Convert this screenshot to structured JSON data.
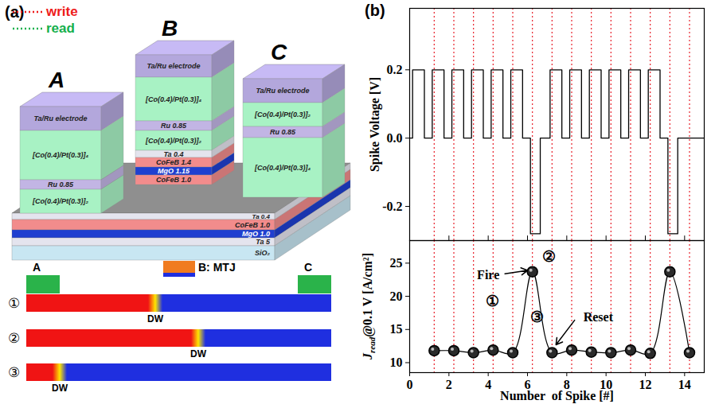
{
  "diagram": {
    "panel_label": "(a)",
    "legend": [
      {
        "label": "write",
        "color": "#ee1b1b"
      },
      {
        "label": "read",
        "color": "#14b04c"
      }
    ],
    "pillars": [
      {
        "name": "A",
        "layers": [
          {
            "text": "Ta/Ru electrode",
            "color": "#b3a7dc"
          },
          {
            "text": "[Co(0.4)/Pt(0.3)]₄",
            "color": "#a8f2c4"
          },
          {
            "text": "Ru 0.85",
            "color": "#c2b5e4"
          },
          {
            "text": "[Co(0.4)/Pt(0.3)]₂",
            "color": "#a8f2c4"
          }
        ]
      },
      {
        "name": "B",
        "layers": [
          {
            "text": "Ta/Ru electrode",
            "color": "#b3a7dc"
          },
          {
            "text": "[Co(0.4)/Pt(0.3)]₄",
            "color": "#a8f2c4"
          },
          {
            "text": "Ru 0.85",
            "color": "#c2b5e4"
          },
          {
            "text": "[Co(0.4)/Pt(0.3)]₂",
            "color": "#a8f2c4"
          },
          {
            "text": "Ta 0.4",
            "color": "#e4e4ee"
          },
          {
            "text": "CoFeB 1.4",
            "color": "#f28c8c"
          },
          {
            "text": "MgO 1.15",
            "color": "#1f3fd0"
          },
          {
            "text": "CoFeB 1.0",
            "color": "#f28c8c"
          }
        ]
      },
      {
        "name": "C",
        "layers": [
          {
            "text": "Ta/Ru electrode",
            "color": "#b3a7dc"
          },
          {
            "text": "[Co(0.4)/Pt(0.3)]₂",
            "color": "#a8f2c4"
          },
          {
            "text": "Ru 0.85",
            "color": "#c2b5e4"
          },
          {
            "text": "[Co(0.4)/Pt(0.3)]₄",
            "color": "#a8f2c4"
          }
        ]
      }
    ],
    "base_layers": [
      {
        "text": "Ta 0.4",
        "color": "#e4e4ee"
      },
      {
        "text": "CoFeB 1.0",
        "color": "#f28c8c"
      },
      {
        "text": "MgO 1.0",
        "color": "#1f3fd0"
      },
      {
        "text": "Ta 5",
        "color": "#e4e4ee"
      },
      {
        "text": "SiO₂",
        "color": "#c8e6f2"
      }
    ],
    "strip": {
      "contacts": [
        "A",
        "B: MTJ",
        "C"
      ],
      "rows": [
        {
          "label": "①",
          "wall": "DW"
        },
        {
          "label": "②",
          "wall": "DW"
        },
        {
          "label": "③",
          "wall": "DW"
        }
      ]
    }
  },
  "panel_b_label": "(b)",
  "chart_data": [
    {
      "type": "line",
      "ylabel": "Spike Voltage [V]",
      "x": [
        0.15,
        1.15,
        2.15,
        3.15,
        4.15,
        5.15,
        6.15,
        7.15,
        8.15,
        9.15,
        10.15,
        11.15,
        12.15,
        13.15
      ],
      "x_end": [
        0.75,
        1.75,
        2.75,
        3.75,
        4.75,
        5.75,
        6.65,
        7.75,
        8.75,
        9.75,
        10.75,
        11.75,
        12.75,
        13.65
      ],
      "values": [
        0.2,
        0.2,
        0.2,
        0.2,
        0.2,
        0.2,
        -0.28,
        0.2,
        0.2,
        0.2,
        0.2,
        0.2,
        0.2,
        -0.28
      ],
      "color": "#000000",
      "xlim": [
        0,
        15
      ],
      "xticks": [
        0,
        2,
        4,
        6,
        8,
        10,
        12,
        14
      ],
      "ylim": [
        -0.3,
        0.38
      ],
      "yticks": [
        {
          "value": -0.2,
          "label": "-0.2"
        },
        {
          "value": 0,
          "label": "0.0"
        },
        {
          "value": 0.2,
          "label": "0.2"
        }
      ],
      "tick_labels": "y"
    },
    {
      "type": "line",
      "xlabel": "Number  of Spike [#]",
      "ylabel": [
        "J",
        "read",
        "@0.1 V [A/cm²]"
      ],
      "x": [
        1.25,
        2.25,
        3.25,
        4.25,
        5.25,
        6.25,
        7.25,
        8.25,
        9.25,
        10.25,
        11.25,
        12.25,
        13.25,
        14.25
      ],
      "values": [
        11.8,
        11.8,
        11.5,
        11.9,
        11.5,
        23.7,
        11.5,
        11.9,
        11.6,
        11.5,
        11.9,
        11.4,
        23.7,
        11.5
      ],
      "color": "#000000",
      "marker": "circle",
      "xlim": [
        0,
        15
      ],
      "xticks": [
        0,
        2,
        4,
        6,
        8,
        10,
        12,
        14
      ],
      "ylim": [
        8.5,
        28.4
      ],
      "yticks": [
        10,
        15,
        20,
        25
      ],
      "annotations": [
        {
          "text": "①",
          "point": 4
        },
        {
          "text": "Fire",
          "point": 5
        },
        {
          "text": "②",
          "point": 5
        },
        {
          "text": "③",
          "point": 6
        },
        {
          "text": "Reset",
          "point": 6
        }
      ]
    }
  ]
}
